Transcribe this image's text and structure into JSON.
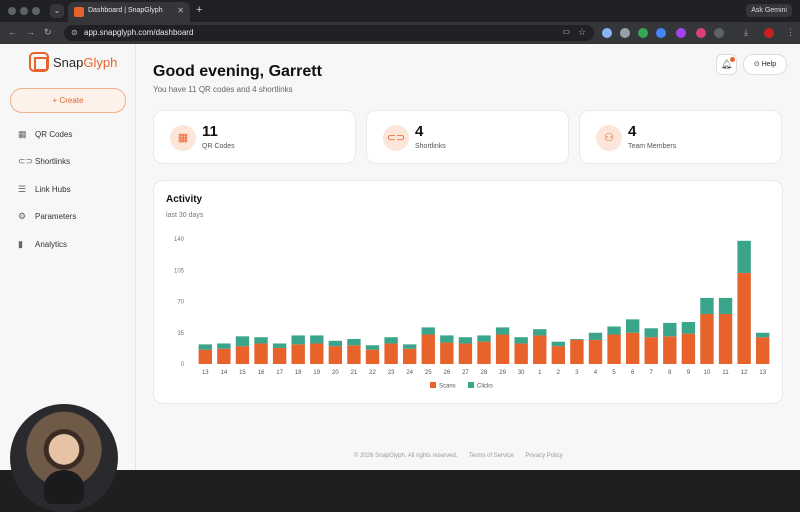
{
  "browser": {
    "tab_title": "Dashboard | SnapGlyph",
    "url": "app.snapglyph.com/dashboard",
    "ask_gemini": "Ask Gemini"
  },
  "sidebar": {
    "logo_prefix": "Snap",
    "logo_suffix": "Glyph",
    "create_label": "+  Create",
    "items": [
      {
        "label": "QR Codes",
        "icon": "qr-icon"
      },
      {
        "label": "Shortlinks",
        "icon": "link-icon"
      },
      {
        "label": "Link Hubs",
        "icon": "list-icon"
      },
      {
        "label": "Parameters",
        "icon": "gear-icon"
      },
      {
        "label": "Analytics",
        "icon": "bar-chart-icon"
      }
    ]
  },
  "header": {
    "greeting": "Good evening, Garrett",
    "subtitle": "You have 11 QR codes and 4 shortlinks",
    "help_label": "Help"
  },
  "stats": [
    {
      "value": "11",
      "label": "QR Codes",
      "icon": "qr-icon"
    },
    {
      "value": "4",
      "label": "Shortlinks",
      "icon": "link-icon"
    },
    {
      "value": "4",
      "label": "Team Members",
      "icon": "users-icon"
    }
  ],
  "activity": {
    "title": "Activity",
    "subtitle": "last 30 days"
  },
  "chart_data": {
    "type": "bar",
    "stacked": true,
    "categories": [
      "13",
      "14",
      "15",
      "16",
      "17",
      "18",
      "19",
      "20",
      "21",
      "22",
      "23",
      "24",
      "25",
      "26",
      "27",
      "28",
      "29",
      "30",
      "1",
      "2",
      "3",
      "4",
      "5",
      "6",
      "7",
      "8",
      "9",
      "10",
      "11",
      "12",
      "13"
    ],
    "series": [
      {
        "name": "Scans",
        "color": "#e8632b",
        "values": [
          16,
          17,
          20,
          23,
          18,
          22,
          23,
          20,
          21,
          16,
          23,
          17,
          33,
          24,
          23,
          25,
          33,
          23,
          32,
          20,
          27,
          27,
          33,
          35,
          30,
          31,
          34,
          56,
          56,
          102,
          30
        ]
      },
      {
        "name": "Clicks",
        "color": "#3aa58b",
        "values": [
          6,
          6,
          11,
          7,
          5,
          10,
          9,
          6,
          7,
          5,
          7,
          5,
          8,
          8,
          7,
          7,
          8,
          7,
          7,
          5,
          1,
          8,
          9,
          15,
          10,
          15,
          13,
          18,
          18,
          36,
          5
        ]
      }
    ],
    "yticks": [
      0,
      35,
      70,
      105,
      140
    ],
    "ylim": [
      0,
      140
    ],
    "legend": "bottom"
  },
  "footer": {
    "copyright": "© 2026 SnapGlyph. All rights reserved.",
    "terms": "Terms of Service",
    "privacy": "Privacy Policy"
  }
}
